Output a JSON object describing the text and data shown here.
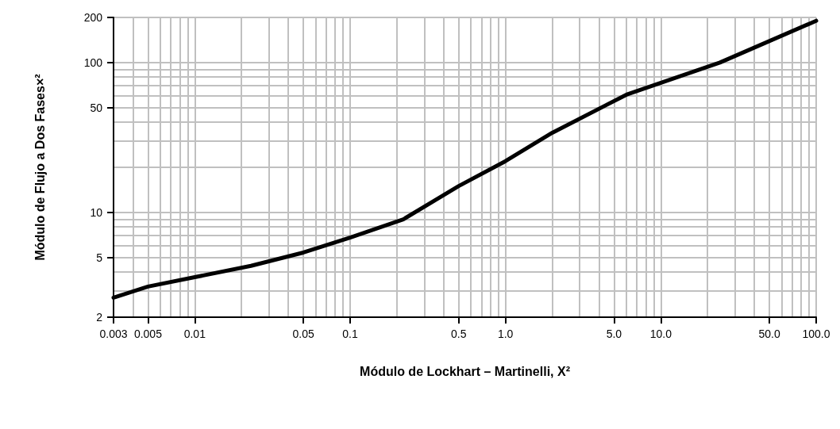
{
  "chart_data": {
    "type": "line",
    "xlabel": "Módulo de Lockhart – Martinelli, X²",
    "ylabel": "Módulo de Flujo a Dos Fases×²",
    "x": [
      0.003,
      0.005,
      0.01,
      0.023,
      0.05,
      0.1,
      0.22,
      0.5,
      1,
      2,
      6,
      24,
      100
    ],
    "series": [
      {
        "color": "#000000",
        "values": [
          2.7,
          3.2,
          3.7,
          4.4,
          5.4,
          6.8,
          9,
          15,
          22,
          34,
          61,
          100,
          190
        ]
      }
    ],
    "log": "xy",
    "xlim": [
      0.003,
      100
    ],
    "ylim": [
      2,
      200
    ],
    "xticks": [
      0.003,
      0.005,
      0.01,
      0.05,
      0.1,
      0.5,
      {
        "value": 1,
        "label": "1.0"
      },
      {
        "value": 5,
        "label": "5.0"
      },
      {
        "value": 10,
        "label": "10.0"
      },
      {
        "value": 50,
        "label": "50.0"
      },
      {
        "value": 100,
        "label": "100.0"
      }
    ],
    "yticks": [
      2,
      5,
      10,
      50,
      100,
      200
    ],
    "grid": true,
    "marker": "none",
    "line_style": "solid"
  }
}
